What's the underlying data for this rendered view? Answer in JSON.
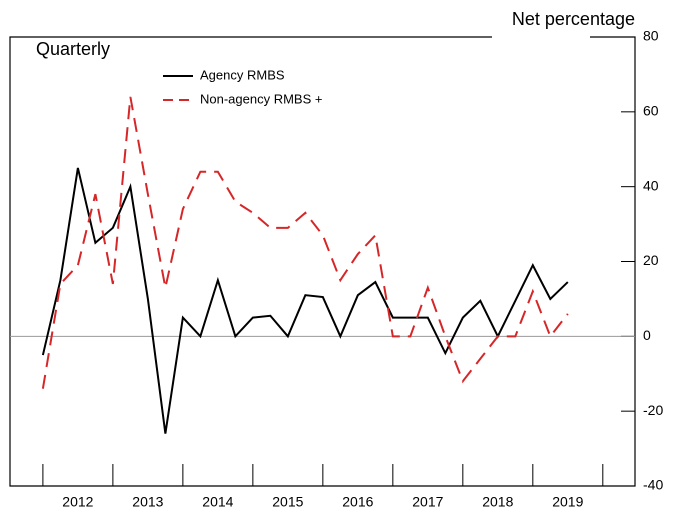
{
  "chart_data": {
    "type": "line",
    "title": "Quarterly",
    "y_axis_label": "Net percentage",
    "x": [
      2012,
      2012.25,
      2012.5,
      2012.75,
      2013,
      2013.25,
      2013.5,
      2013.75,
      2014,
      2014.25,
      2014.5,
      2014.75,
      2015,
      2015.25,
      2015.5,
      2015.75,
      2016,
      2016.25,
      2016.5,
      2016.75,
      2017,
      2017.25,
      2017.5,
      2017.75,
      2018,
      2018.25,
      2018.5,
      2018.75,
      2019,
      2019.25,
      2019.5
    ],
    "series": [
      {
        "name": "Agency RMBS",
        "color": "#000000",
        "dash": false,
        "values": [
          -5,
          15,
          45,
          25,
          29,
          40,
          10,
          -26,
          5,
          0,
          15,
          0,
          5,
          5.5,
          0,
          11,
          10.5,
          0,
          11,
          14.5,
          5,
          5,
          5,
          -4.5,
          5,
          9.5,
          0,
          9.5,
          19,
          10,
          14.5
        ]
      },
      {
        "name": "Non-agency RMBS +",
        "color": "#d62728",
        "dash": true,
        "values": [
          -14,
          14,
          19,
          38,
          14,
          64,
          38,
          13,
          34,
          44,
          44,
          36,
          33,
          29,
          29,
          33,
          27,
          15,
          22,
          27,
          0,
          0,
          13,
          0,
          -12,
          -6,
          0,
          0,
          12,
          0,
          6
        ]
      }
    ],
    "xlim": [
      2011.53,
      2020.46
    ],
    "xticks": [
      {
        "value": 2012.5,
        "label": "2012"
      },
      {
        "value": 2013.5,
        "label": "2013"
      },
      {
        "value": 2014.5,
        "label": "2014"
      },
      {
        "value": 2015.5,
        "label": "2015"
      },
      {
        "value": 2016.5,
        "label": "2016"
      },
      {
        "value": 2017.5,
        "label": "2017"
      },
      {
        "value": 2018.5,
        "label": "2018"
      },
      {
        "value": 2019.5,
        "label": "2019"
      }
    ],
    "ylim": [
      -40,
      80
    ],
    "yticks": [
      -40,
      -20,
      0,
      20,
      40,
      60,
      80
    ]
  }
}
